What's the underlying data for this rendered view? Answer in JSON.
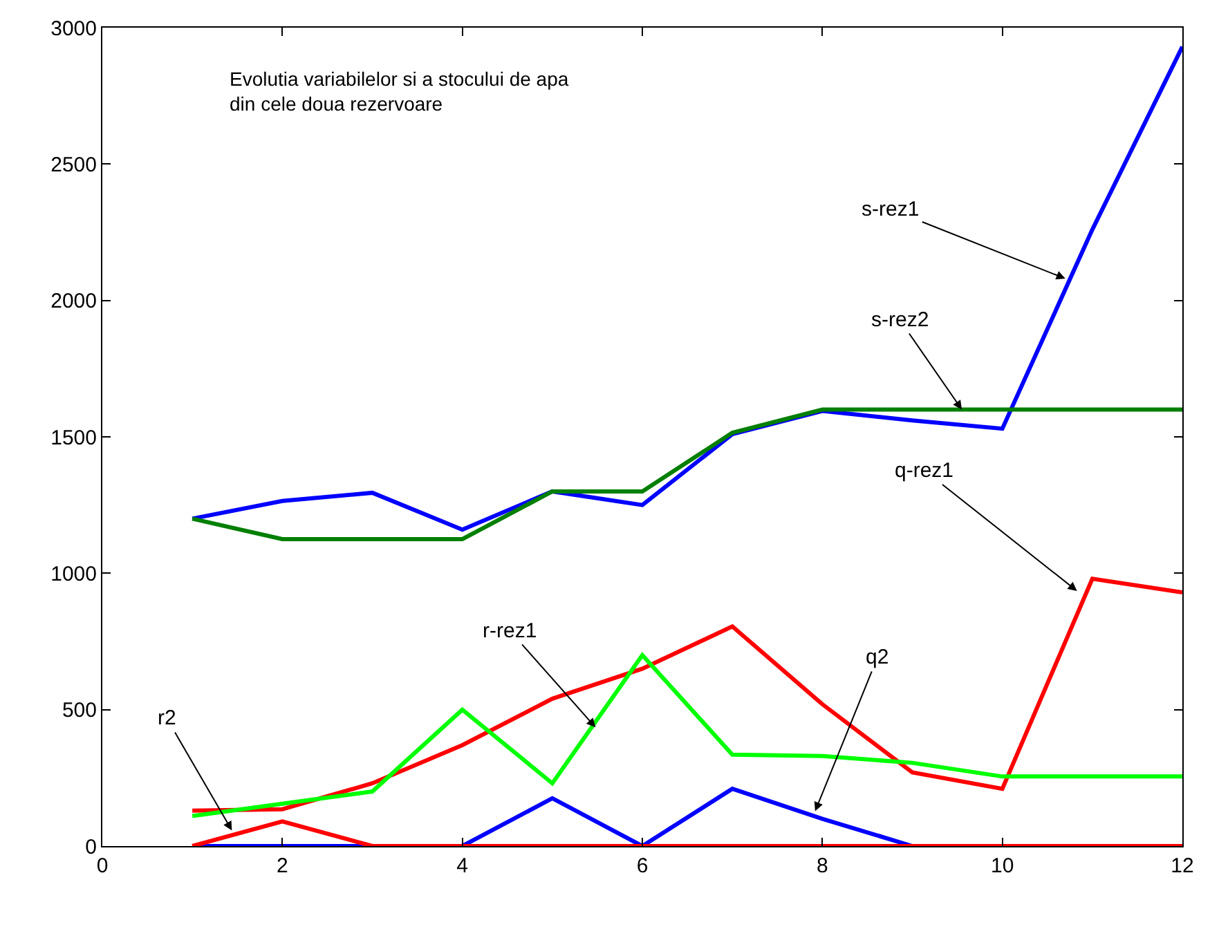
{
  "chart_data": {
    "type": "line",
    "title": "Evolutia variabilelor si a stocului de apa\ndin cele doua rezervoare",
    "x": [
      1,
      2,
      3,
      4,
      5,
      6,
      7,
      8,
      9,
      10,
      11,
      12
    ],
    "series": [
      {
        "color": "#0000ff",
        "values": [
          1200,
          1265,
          1295,
          1160,
          1300,
          1250,
          1510,
          1595,
          1560,
          1530,
          2260,
          2930
        ]
      },
      {
        "color": "#007f00",
        "values": [
          1200,
          1125,
          1125,
          1125,
          1300,
          1300,
          1515,
          1600,
          1600,
          1600,
          1600,
          1600
        ]
      },
      {
        "color": "#ff0000",
        "values": [
          130,
          135,
          230,
          370,
          540,
          650,
          805,
          520,
          270,
          210,
          980,
          930
        ]
      },
      {
        "color": "#00ff00",
        "values": [
          110,
          155,
          200,
          500,
          230,
          700,
          335,
          330,
          305,
          255,
          255,
          255
        ]
      },
      {
        "color": "#0000ff",
        "values": [
          0,
          0,
          0,
          0,
          175,
          0,
          210,
          100,
          0,
          null,
          null,
          null
        ]
      },
      {
        "color": "#ff0000",
        "values": [
          0,
          90,
          0,
          0,
          0,
          0,
          0,
          0,
          0,
          0,
          0,
          0
        ]
      }
    ],
    "annotations": [
      {
        "text": "s-rez1",
        "x": 10.7,
        "y": 2080
      },
      {
        "text": "s-rez2",
        "x": 9.55,
        "y": 1600
      },
      {
        "text": "q-rez1",
        "x": 10.83,
        "y": 935
      },
      {
        "text": "r-rez1",
        "x": 5.48,
        "y": 435
      },
      {
        "text": "q2",
        "x": 7.92,
        "y": 128
      },
      {
        "text": "r2",
        "x": 1.44,
        "y": 57
      }
    ],
    "xlim": [
      0,
      12
    ],
    "xticks": [
      0,
      2,
      4,
      6,
      8,
      10,
      12
    ],
    "ylim": [
      0,
      3000
    ],
    "yticks": [
      0,
      500,
      1000,
      1500,
      2000,
      2500,
      3000
    ],
    "marker": "none",
    "line_style": "solid"
  }
}
